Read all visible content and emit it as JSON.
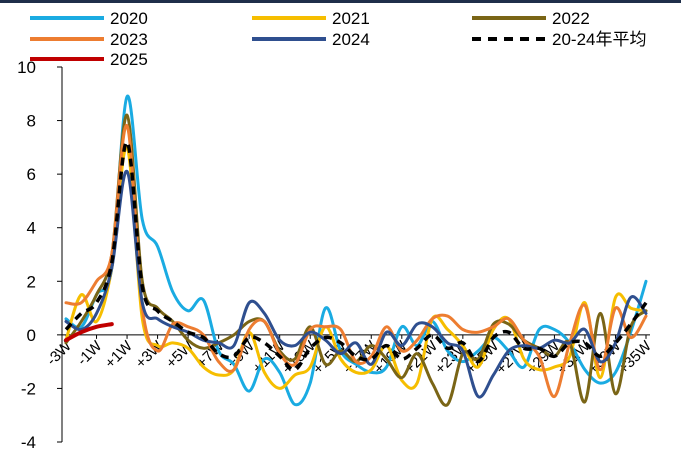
{
  "chart_data": {
    "type": "line",
    "title": "",
    "xlabel": "",
    "ylabel": "",
    "ylim": [
      -4,
      10
    ],
    "yticks": [
      "10",
      "8",
      "6",
      "4",
      "2",
      "0",
      "-2",
      "-4"
    ],
    "x": [
      "-3W",
      "-2W",
      "-1W",
      "0W",
      "+1W",
      "+2W",
      "+3W",
      "+4W",
      "+5W",
      "+6W",
      "+7W",
      "+8W",
      "+9W",
      "+10W",
      "+11W",
      "+12W",
      "+13W",
      "+14W",
      "+15W",
      "+16W",
      "+17W",
      "+18W",
      "+19W",
      "+20W",
      "+21W",
      "+22W",
      "+23W",
      "+24W",
      "+25W",
      "+26W",
      "+27W",
      "+28W",
      "+29W",
      "+30W",
      "+31W",
      "+32W",
      "+33W",
      "+34W",
      "+35W"
    ],
    "xtick_labels": [
      "-3W",
      "-1W",
      "+1W",
      "+3W",
      "+5W",
      "+7W",
      "+9W",
      "+11W",
      "+13W",
      "+15W",
      "+17W",
      "+19W",
      "+21W",
      "+23W",
      "+25W",
      "+27W",
      "+29W",
      "+31W",
      "+33W",
      "+35W"
    ],
    "grid": false,
    "legend_position": "top",
    "series": [
      {
        "name": "2020",
        "color": "#1aabe2",
        "dash": "solid",
        "width": 3,
        "values": [
          0.6,
          0.3,
          1.5,
          2.5,
          8.9,
          4.3,
          3.3,
          1.6,
          0.9,
          1.3,
          -0.6,
          -1.1,
          -2.1,
          -0.9,
          -1.4,
          -2.6,
          -1.8,
          1.0,
          -0.6,
          -1.1,
          -1.4,
          -1.2,
          0.3,
          -0.4,
          0.5,
          -0.6,
          -1.0,
          -0.6,
          -0.1,
          -0.6,
          -1.2,
          0.2,
          0.2,
          -0.3,
          -1.3,
          -1.8,
          -1.4,
          0.1,
          2.0
        ]
      },
      {
        "name": "2021",
        "color": "#f6be00",
        "dash": "solid",
        "width": 3,
        "values": [
          -0.2,
          1.5,
          0.5,
          2.5,
          7.0,
          0.6,
          -0.4,
          -0.3,
          -0.5,
          -1.2,
          -1.5,
          -1.3,
          0.1,
          -1.4,
          -2.0,
          -1.5,
          -1.2,
          0.3,
          -0.9,
          -1.4,
          -1.3,
          -0.4,
          -1.7,
          -1.8,
          0.6,
          0.2,
          -0.4,
          -1.2,
          0.2,
          0.6,
          -0.9,
          -1.3,
          -1.2,
          -0.8,
          1.2,
          -1.6,
          1.4,
          1.0,
          0.9
        ]
      },
      {
        "name": "2022",
        "color": "#7a6516",
        "dash": "solid",
        "width": 3,
        "values": [
          -0.3,
          0.5,
          1.5,
          3.0,
          8.2,
          2.0,
          1.0,
          0.5,
          -0.2,
          -0.5,
          -0.3,
          0.0,
          0.5,
          0.5,
          -0.6,
          -0.9,
          0.3,
          -1.1,
          -0.6,
          -1.0,
          -0.4,
          -0.9,
          -1.6,
          -0.7,
          -1.8,
          -2.6,
          -0.7,
          -0.9,
          0.4,
          0.4,
          -0.2,
          -0.5,
          -0.8,
          -0.3,
          -2.5,
          0.8,
          -2.2,
          0.3,
          0.9
        ]
      },
      {
        "name": "2023",
        "color": "#ed7d31",
        "dash": "solid",
        "width": 3,
        "values": [
          1.2,
          1.2,
          2.0,
          3.0,
          7.8,
          1.0,
          -0.6,
          0.4,
          0.3,
          0.0,
          -1.0,
          -1.3,
          0.2,
          0.5,
          -0.7,
          -1.1,
          0.2,
          0.3,
          0.2,
          -1.0,
          -0.8,
          0.3,
          -0.6,
          -0.2,
          0.6,
          0.7,
          0.2,
          0.1,
          0.3,
          0.6,
          -0.2,
          -0.8,
          -2.3,
          -0.3,
          1.1,
          -1.3,
          1.0,
          -0.1,
          0.7
        ]
      },
      {
        "name": "2024",
        "color": "#2f4f8f",
        "dash": "solid",
        "width": 3,
        "values": [
          0.5,
          0.2,
          0.8,
          2.5,
          6.1,
          1.2,
          0.6,
          0.3,
          0.1,
          -0.2,
          -0.3,
          -0.4,
          1.2,
          0.8,
          -0.2,
          -0.4,
          0.1,
          -0.2,
          -0.7,
          -0.3,
          -1.1,
          0.1,
          -0.4,
          0.4,
          0.3,
          -0.3,
          -0.6,
          -2.3,
          -1.5,
          -0.6,
          -0.4,
          -0.5,
          -0.2,
          -0.3,
          0.2,
          -1.0,
          -0.3,
          1.4,
          0.8
        ]
      },
      {
        "name": "20-24年平均",
        "color": "#000000",
        "dash": "8,6",
        "width": 3.5,
        "values": [
          0.2,
          0.8,
          1.2,
          2.7,
          7.2,
          1.8,
          0.9,
          0.5,
          0.1,
          -0.1,
          -0.7,
          -0.8,
          -0.1,
          -0.3,
          -0.8,
          -1.3,
          -0.5,
          -0.1,
          -0.3,
          -0.8,
          -0.9,
          -0.4,
          -0.9,
          -0.5,
          0.0,
          -0.5,
          -0.3,
          -1.0,
          -0.1,
          0.1,
          -0.5,
          -0.5,
          -0.8,
          -0.3,
          -0.3,
          -0.8,
          -0.3,
          0.4,
          1.2
        ]
      },
      {
        "name": "2025",
        "color": "#c00000",
        "dash": "solid",
        "width": 4,
        "values": [
          -0.2,
          0.1,
          0.3,
          0.4,
          null,
          null,
          null,
          null,
          null,
          null,
          null,
          null,
          null,
          null,
          null,
          null,
          null,
          null,
          null,
          null,
          null,
          null,
          null,
          null,
          null,
          null,
          null,
          null,
          null,
          null,
          null,
          null,
          null,
          null,
          null,
          null,
          null,
          null,
          null
        ]
      }
    ]
  }
}
